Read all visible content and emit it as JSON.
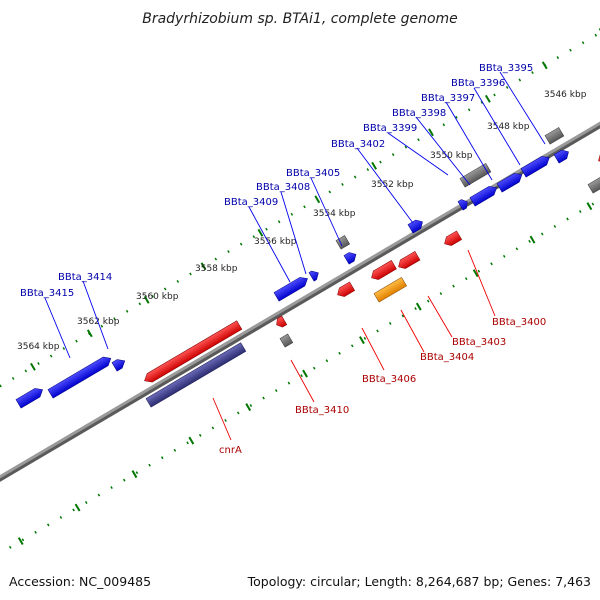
{
  "title": "Bradyrhizobium sp. BTAi1, complete genome",
  "footer": {
    "accession": "Accession: NC_009485",
    "summary": "Topology: circular; Length: 8,264,687 bp; Genes: 7,463"
  },
  "colors": {
    "forward": "#0000ee",
    "reverse": "#ee0000",
    "gray_gene": "#707070",
    "orange_gene": "#ff9900",
    "purple_gene": "#3a3a8c",
    "backbone": "#8a8a8a",
    "ticks": "#007700",
    "label_forward": "#0000aa",
    "label_reverse": "#aa0000"
  },
  "kbp_labels": [
    "3546 kbp",
    "3548 kbp",
    "3550 kbp",
    "3552 kbp",
    "3554 kbp",
    "3556 kbp",
    "3558 kbp",
    "3560 kbp",
    "3562 kbp",
    "3564 kbp"
  ],
  "forward_labels": [
    "BBta_3395",
    "BBta_3396",
    "BBta_3397",
    "BBta_3398",
    "BBta_3399",
    "BBta_3402",
    "BBta_3405",
    "BBta_3408",
    "BBta_3409",
    "BBta_3414",
    "BBta_3415"
  ],
  "reverse_labels": [
    "BBta_3400",
    "BBta_3403",
    "BBta_3404",
    "BBta_3406",
    "BBta_3410",
    "cnrA"
  ]
}
